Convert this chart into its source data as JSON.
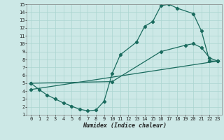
{
  "title": "",
  "xlabel": "Humidex (Indice chaleur)",
  "bg_color": "#cce8e6",
  "line_color": "#1a6b5e",
  "grid_color": "#aad4d0",
  "xlim": [
    -0.5,
    23.5
  ],
  "ylim": [
    1,
    15
  ],
  "xticks": [
    0,
    1,
    2,
    3,
    4,
    5,
    6,
    7,
    8,
    9,
    10,
    11,
    12,
    13,
    14,
    15,
    16,
    17,
    18,
    19,
    20,
    21,
    22,
    23
  ],
  "yticks": [
    1,
    2,
    3,
    4,
    5,
    6,
    7,
    8,
    9,
    10,
    11,
    12,
    13,
    14,
    15
  ],
  "line1_x": [
    0,
    1,
    2,
    3,
    4,
    5,
    6,
    7,
    8,
    9,
    10,
    11,
    13,
    14,
    15,
    16,
    17,
    18,
    20,
    21,
    22,
    23
  ],
  "line1_y": [
    5.0,
    4.2,
    3.5,
    3.0,
    2.5,
    2.1,
    1.7,
    1.5,
    1.6,
    2.7,
    6.2,
    8.6,
    10.2,
    12.2,
    12.8,
    14.8,
    15.0,
    14.5,
    13.8,
    11.6,
    7.8,
    7.8
  ],
  "line2_x": [
    0,
    10,
    16,
    19,
    20,
    21,
    22,
    23
  ],
  "line2_y": [
    5.0,
    5.2,
    9.0,
    9.8,
    10.0,
    9.5,
    8.2,
    7.8
  ],
  "line3_x": [
    0,
    23
  ],
  "line3_y": [
    4.2,
    7.8
  ],
  "marker": "D",
  "markersize": 2.2,
  "linewidth": 0.9,
  "tick_fontsize": 5.0,
  "xlabel_fontsize": 6.0
}
